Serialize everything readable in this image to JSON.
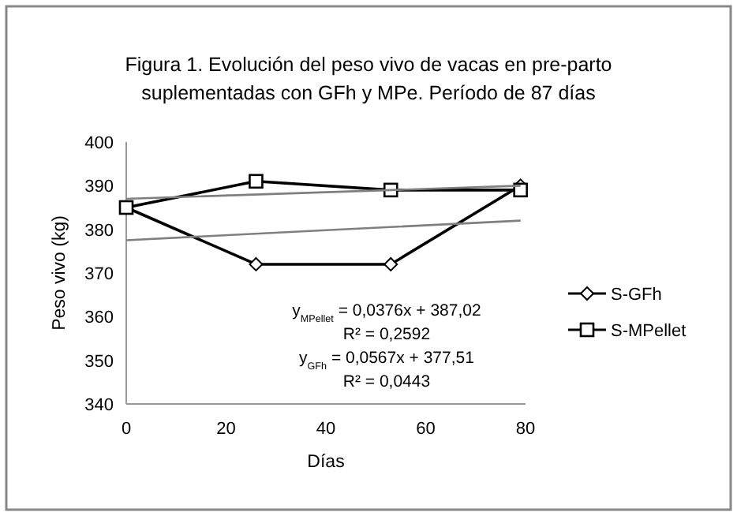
{
  "chart_data": {
    "type": "line",
    "title": "Figura 1. Evolución del peso vivo de vacas en pre-parto suplementadas con GFh y MPe. Período  de 87 días",
    "xlabel": "Días",
    "ylabel": "Peso vivo  (kg)",
    "x": [
      0,
      26,
      53,
      79
    ],
    "series": [
      {
        "name": "S-GFh",
        "color": "#000000",
        "marker": "diamond",
        "values": [
          385,
          372,
          372,
          390
        ]
      },
      {
        "name": "S-MPellet",
        "color": "#000000",
        "marker": "square",
        "values": [
          385,
          391,
          389,
          389
        ]
      },
      {
        "type": "line",
        "color": "#7f7f7f",
        "marker": "none",
        "x": [
          0,
          40,
          79
        ],
        "values": [
          387,
          388.5,
          390
        ]
      },
      {
        "type": "line",
        "color": "#7f7f7f",
        "marker": "none",
        "x": [
          0,
          40,
          79
        ],
        "values": [
          377.5,
          379.8,
          382
        ]
      }
    ],
    "xlim": [
      0,
      80
    ],
    "xticks": [
      0,
      20,
      40,
      60,
      80
    ],
    "ylim": [
      340,
      400
    ],
    "yticks": [
      340,
      350,
      360,
      370,
      380,
      390,
      400
    ],
    "grid": false,
    "legend": "right",
    "line_style": "solid",
    "annotations": [
      "y$_{MPellet}$ = 0,0376x + 387,02",
      "R² = 0,2592",
      "y$_{GFh}$ = 0,0567x + 377,51",
      "R² = 0,0443"
    ]
  }
}
